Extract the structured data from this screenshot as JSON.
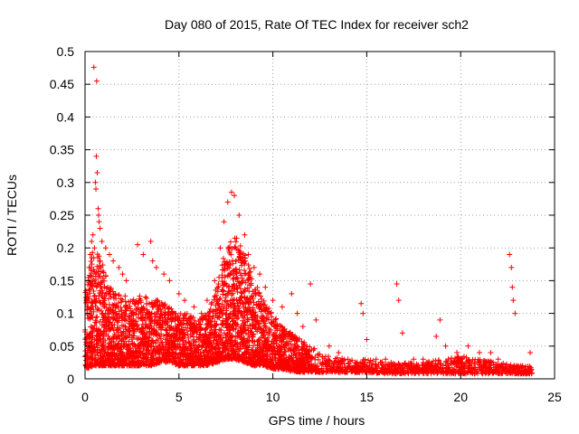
{
  "chart_data": {
    "type": "scatter",
    "title": "Day 080 of 2015, Rate Of TEC Index for receiver sch2",
    "xlabel": "GPS time / hours",
    "ylabel": "ROTI / TECUs",
    "xlim": [
      0,
      25
    ],
    "ylim": [
      0,
      0.5
    ],
    "xticks": [
      0,
      5,
      10,
      15,
      20,
      25
    ],
    "yticks": [
      0,
      0.05,
      0.1,
      0.15,
      0.2,
      0.25,
      0.3,
      0.35,
      0.4,
      0.45,
      0.5
    ],
    "grid": true,
    "marker": "+",
    "color": "#ff0000",
    "series": [
      {
        "name": "ROTI",
        "points": [
          [
            0.22,
            0.17
          ],
          [
            0.28,
            0.19
          ],
          [
            0.35,
            0.21
          ],
          [
            0.42,
            0.22
          ],
          [
            0.5,
            0.2
          ],
          [
            0.47,
            0.476
          ],
          [
            0.62,
            0.455
          ],
          [
            0.6,
            0.34
          ],
          [
            0.65,
            0.315
          ],
          [
            0.55,
            0.3
          ],
          [
            0.58,
            0.29
          ],
          [
            0.7,
            0.26
          ],
          [
            0.72,
            0.25
          ],
          [
            0.75,
            0.24
          ],
          [
            0.8,
            0.23
          ],
          [
            0.9,
            0.21
          ],
          [
            1.1,
            0.2
          ],
          [
            1.3,
            0.19
          ],
          [
            1.5,
            0.18
          ],
          [
            1.8,
            0.17
          ],
          [
            2.0,
            0.16
          ],
          [
            2.2,
            0.15
          ],
          [
            2.8,
            0.205
          ],
          [
            3.1,
            0.19
          ],
          [
            3.5,
            0.21
          ],
          [
            3.6,
            0.18
          ],
          [
            3.8,
            0.17
          ],
          [
            4.2,
            0.16
          ],
          [
            4.5,
            0.15
          ],
          [
            5.0,
            0.13
          ],
          [
            5.3,
            0.12
          ],
          [
            5.8,
            0.11
          ],
          [
            6.2,
            0.1
          ],
          [
            6.5,
            0.12
          ],
          [
            6.9,
            0.15
          ],
          [
            7.2,
            0.2
          ],
          [
            7.4,
            0.24
          ],
          [
            7.6,
            0.27
          ],
          [
            7.8,
            0.285
          ],
          [
            7.95,
            0.28
          ],
          [
            8.2,
            0.25
          ],
          [
            8.5,
            0.22
          ],
          [
            8.7,
            0.19
          ],
          [
            9.0,
            0.17
          ],
          [
            9.3,
            0.16
          ],
          [
            9.6,
            0.14
          ],
          [
            10.0,
            0.12
          ],
          [
            10.5,
            0.11
          ],
          [
            11.0,
            0.13
          ],
          [
            11.3,
            0.1
          ],
          [
            11.6,
            0.08
          ],
          [
            12.0,
            0.145
          ],
          [
            12.3,
            0.09
          ],
          [
            13.0,
            0.05
          ],
          [
            13.5,
            0.04
          ],
          [
            14.0,
            0.03
          ],
          [
            14.7,
            0.115
          ],
          [
            14.8,
            0.1
          ],
          [
            15.0,
            0.06
          ],
          [
            15.5,
            0.03
          ],
          [
            16.0,
            0.03
          ],
          [
            16.6,
            0.145
          ],
          [
            16.7,
            0.12
          ],
          [
            16.9,
            0.07
          ],
          [
            17.5,
            0.03
          ],
          [
            18.0,
            0.03
          ],
          [
            18.7,
            0.065
          ],
          [
            18.9,
            0.09
          ],
          [
            19.2,
            0.05
          ],
          [
            19.8,
            0.04
          ],
          [
            20.4,
            0.05
          ],
          [
            21.0,
            0.04
          ],
          [
            21.6,
            0.04
          ],
          [
            22.0,
            0.03
          ],
          [
            22.6,
            0.19
          ],
          [
            22.7,
            0.17
          ],
          [
            22.75,
            0.14
          ],
          [
            22.8,
            0.12
          ],
          [
            22.9,
            0.1
          ],
          [
            23.3,
            0.02
          ],
          [
            23.7,
            0.04
          ]
        ],
        "envelope": [
          [
            0.0,
            0.015,
            0.13
          ],
          [
            0.5,
            0.02,
            0.21
          ],
          [
            1.0,
            0.02,
            0.17
          ],
          [
            1.5,
            0.02,
            0.14
          ],
          [
            2.0,
            0.02,
            0.13
          ],
          [
            2.5,
            0.02,
            0.12
          ],
          [
            3.0,
            0.02,
            0.13
          ],
          [
            3.5,
            0.02,
            0.12
          ],
          [
            4.0,
            0.025,
            0.12
          ],
          [
            4.5,
            0.025,
            0.11
          ],
          [
            5.0,
            0.02,
            0.1
          ],
          [
            5.5,
            0.02,
            0.1
          ],
          [
            6.0,
            0.02,
            0.09
          ],
          [
            6.5,
            0.02,
            0.1
          ],
          [
            7.0,
            0.025,
            0.14
          ],
          [
            7.5,
            0.03,
            0.2
          ],
          [
            8.0,
            0.03,
            0.22
          ],
          [
            8.5,
            0.025,
            0.19
          ],
          [
            9.0,
            0.02,
            0.15
          ],
          [
            9.5,
            0.02,
            0.12
          ],
          [
            10.0,
            0.015,
            0.1
          ],
          [
            10.5,
            0.015,
            0.08
          ],
          [
            11.0,
            0.012,
            0.07
          ],
          [
            11.5,
            0.01,
            0.06
          ],
          [
            12.0,
            0.01,
            0.05
          ],
          [
            13.0,
            0.01,
            0.035
          ],
          [
            14.0,
            0.01,
            0.03
          ],
          [
            15.0,
            0.01,
            0.03
          ],
          [
            16.0,
            0.008,
            0.025
          ],
          [
            17.0,
            0.008,
            0.025
          ],
          [
            18.0,
            0.008,
            0.025
          ],
          [
            19.0,
            0.008,
            0.03
          ],
          [
            20.0,
            0.008,
            0.035
          ],
          [
            21.0,
            0.008,
            0.03
          ],
          [
            22.0,
            0.008,
            0.025
          ],
          [
            23.0,
            0.008,
            0.02
          ],
          [
            23.8,
            0.008,
            0.02
          ]
        ]
      }
    ]
  }
}
